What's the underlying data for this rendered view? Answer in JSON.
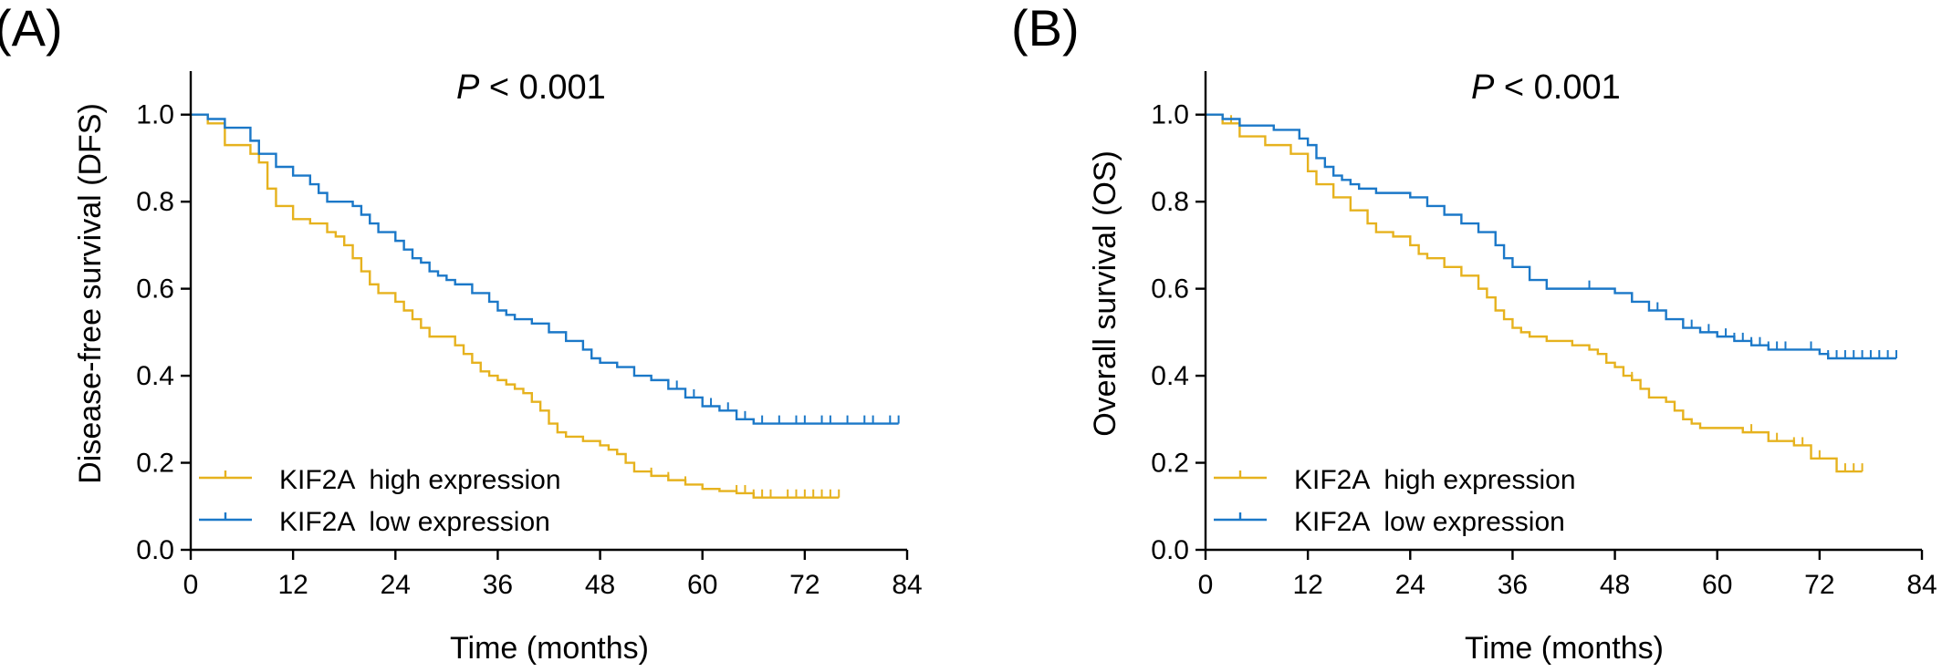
{
  "figure": {
    "colors": {
      "high": "#E6B21E",
      "low": "#1B78C8",
      "axis": "#000000"
    }
  },
  "chart_data": [
    {
      "type": "line",
      "subtype": "kaplan-meier",
      "panel_label": "(A)",
      "annotation": "< 0.001",
      "annotation_prefix": "P",
      "xlabel": "Time (months)",
      "ylabel": "Disease-free survival (DFS)",
      "xlim": [
        0,
        84
      ],
      "ylim": [
        0,
        1.1
      ],
      "xticks": [
        0,
        12,
        24,
        36,
        48,
        60,
        72,
        84
      ],
      "yticks": [
        0.0,
        0.2,
        0.4,
        0.6,
        0.8,
        1.0
      ],
      "ytick_labels": [
        "0.0",
        "0.2",
        "0.4",
        "0.6",
        "0.8",
        "1.0"
      ],
      "legend_position": "bottom-left",
      "series": [
        {
          "name": "KIF2A  high expression",
          "color_key": "high",
          "x": [
            0,
            2,
            4,
            7,
            8,
            9,
            10,
            12,
            14,
            16,
            17,
            18,
            19,
            20,
            21,
            22,
            24,
            25,
            26,
            27,
            28,
            31,
            32,
            33,
            34,
            35,
            36,
            37,
            38,
            39,
            40,
            41,
            42,
            43,
            44,
            46,
            48,
            49,
            50,
            51,
            52,
            54,
            56,
            58,
            60,
            62,
            64,
            66,
            76
          ],
          "y": [
            1.0,
            0.98,
            0.93,
            0.91,
            0.89,
            0.83,
            0.79,
            0.76,
            0.75,
            0.73,
            0.72,
            0.7,
            0.67,
            0.64,
            0.61,
            0.59,
            0.57,
            0.55,
            0.53,
            0.51,
            0.49,
            0.47,
            0.45,
            0.43,
            0.41,
            0.4,
            0.39,
            0.38,
            0.37,
            0.36,
            0.34,
            0.32,
            0.29,
            0.27,
            0.26,
            0.25,
            0.24,
            0.23,
            0.22,
            0.2,
            0.18,
            0.17,
            0.16,
            0.15,
            0.14,
            0.135,
            0.13,
            0.12,
            0.12
          ],
          "censor_x": [
            54,
            56,
            58,
            64,
            65,
            66,
            67,
            68,
            70,
            71,
            72,
            73,
            74,
            75,
            76
          ]
        },
        {
          "name": "KIF2A  low expression",
          "color_key": "low",
          "x": [
            0,
            2,
            4,
            7,
            8,
            10,
            12,
            14,
            15,
            16,
            19,
            20,
            21,
            22,
            24,
            25,
            26,
            27,
            28,
            29,
            30,
            31,
            33,
            35,
            36,
            37,
            38,
            40,
            42,
            44,
            46,
            47,
            48,
            50,
            52,
            54,
            56,
            58,
            60,
            62,
            64,
            66,
            83
          ],
          "y": [
            1.0,
            0.99,
            0.97,
            0.94,
            0.91,
            0.88,
            0.86,
            0.84,
            0.82,
            0.8,
            0.79,
            0.77,
            0.75,
            0.73,
            0.71,
            0.69,
            0.67,
            0.66,
            0.64,
            0.63,
            0.62,
            0.61,
            0.59,
            0.57,
            0.55,
            0.54,
            0.53,
            0.52,
            0.5,
            0.48,
            0.46,
            0.44,
            0.43,
            0.42,
            0.4,
            0.39,
            0.37,
            0.35,
            0.33,
            0.32,
            0.3,
            0.29,
            0.29
          ],
          "censor_x": [
            57,
            59,
            61,
            63,
            65,
            67,
            69,
            71,
            72,
            74,
            75,
            77,
            79,
            80,
            82,
            83
          ]
        }
      ]
    },
    {
      "type": "line",
      "subtype": "kaplan-meier",
      "panel_label": "(B)",
      "annotation": "< 0.001",
      "annotation_prefix": "P",
      "xlabel": "Time (months)",
      "ylabel": "Overall survival (OS)",
      "xlim": [
        0,
        84
      ],
      "ylim": [
        0,
        1.1
      ],
      "xticks": [
        0,
        12,
        24,
        36,
        48,
        60,
        72,
        84
      ],
      "yticks": [
        0.0,
        0.2,
        0.4,
        0.6,
        0.8,
        1.0
      ],
      "ytick_labels": [
        "0.0",
        "0.2",
        "0.4",
        "0.6",
        "0.8",
        "1.0"
      ],
      "legend_position": "bottom-left",
      "series": [
        {
          "name": "KIF2A  high expression",
          "color_key": "high",
          "x": [
            0,
            2,
            4,
            7,
            10,
            12,
            13,
            15,
            17,
            19,
            20,
            22,
            24,
            25,
            26,
            28,
            30,
            32,
            33,
            34,
            35,
            36,
            37,
            38,
            40,
            43,
            45,
            46,
            47,
            48,
            49,
            50,
            51,
            52,
            54,
            55,
            56,
            57,
            58,
            60,
            63,
            66,
            69,
            71,
            74,
            77
          ],
          "y": [
            1.0,
            0.98,
            0.95,
            0.93,
            0.91,
            0.87,
            0.84,
            0.81,
            0.78,
            0.75,
            0.73,
            0.72,
            0.7,
            0.68,
            0.67,
            0.65,
            0.63,
            0.6,
            0.58,
            0.55,
            0.53,
            0.51,
            0.5,
            0.49,
            0.48,
            0.47,
            0.46,
            0.45,
            0.43,
            0.42,
            0.4,
            0.39,
            0.37,
            0.35,
            0.34,
            0.32,
            0.3,
            0.29,
            0.28,
            0.28,
            0.27,
            0.25,
            0.24,
            0.21,
            0.18,
            0.18
          ],
          "censor_x": [
            3,
            50,
            64,
            67,
            69,
            70,
            71,
            72,
            75,
            76,
            77
          ]
        },
        {
          "name": "KIF2A  low expression",
          "color_key": "low",
          "x": [
            0,
            2,
            4,
            8,
            11,
            12,
            13,
            14,
            15,
            16,
            17,
            18,
            20,
            22,
            24,
            26,
            28,
            30,
            32,
            34,
            35,
            36,
            38,
            40,
            48,
            50,
            52,
            54,
            56,
            58,
            60,
            62,
            64,
            66,
            68,
            72,
            73,
            81
          ],
          "y": [
            1.0,
            0.99,
            0.975,
            0.965,
            0.945,
            0.93,
            0.9,
            0.88,
            0.86,
            0.85,
            0.84,
            0.83,
            0.82,
            0.82,
            0.81,
            0.79,
            0.77,
            0.75,
            0.73,
            0.7,
            0.67,
            0.65,
            0.62,
            0.6,
            0.59,
            0.57,
            0.55,
            0.53,
            0.51,
            0.5,
            0.49,
            0.48,
            0.47,
            0.46,
            0.46,
            0.45,
            0.44,
            0.44
          ],
          "censor_x": [
            45,
            53,
            57,
            59,
            61,
            62,
            63,
            64,
            65,
            66,
            67,
            68,
            71,
            73,
            74,
            75,
            76,
            77,
            78,
            79,
            80,
            81
          ]
        }
      ]
    }
  ]
}
